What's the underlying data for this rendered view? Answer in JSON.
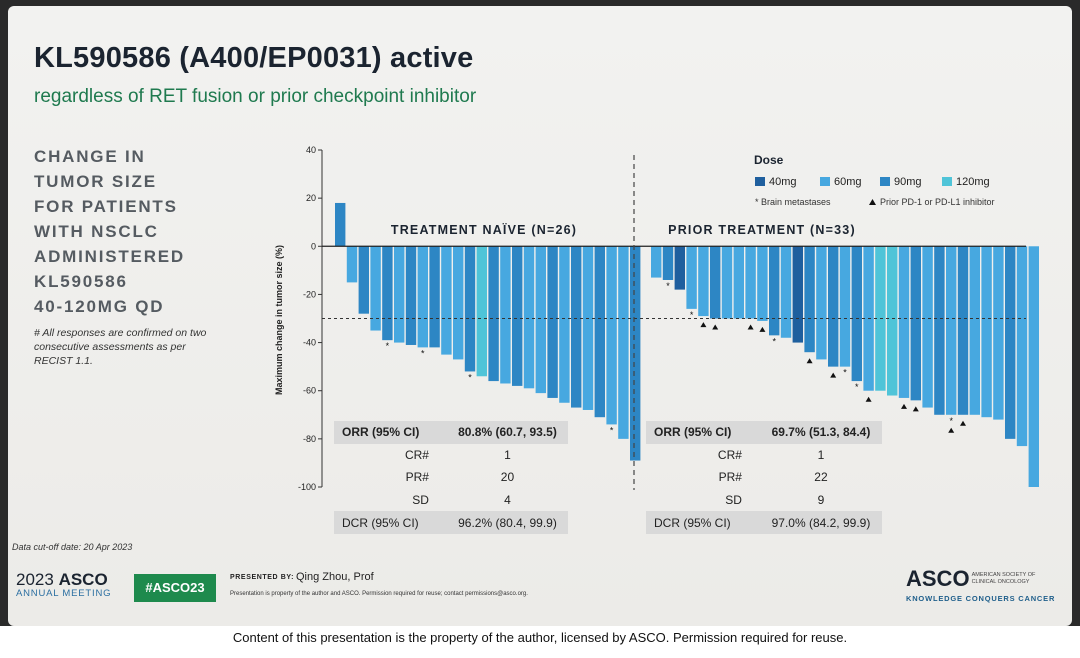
{
  "slide": {
    "title": "KL590586 (A400/EP0031) active",
    "subtitle": "regardless of RET fusion or prior checkpoint inhibitor",
    "side_heading_lines": [
      "CHANGE IN",
      "TUMOR SIZE",
      "FOR PATIENTS",
      "WITH NSCLC",
      "ADMINISTERED",
      "KL590586",
      "40-120MG QD"
    ],
    "side_note": "# All responses are confirmed on two consecutive assessments as per RECIST 1.1.",
    "cutoff": "Data cut-off date: 20 Apr 2023"
  },
  "colors": {
    "dose_40mg": "#1f5f9e",
    "dose_60mg": "#47a8e0",
    "dose_90mg": "#2d86c4",
    "dose_120mg": "#4fc4d8"
  },
  "chart_data": {
    "type": "bar",
    "ylabel": "Maximum change in tumor size (%)",
    "ylim": [
      -100,
      40
    ],
    "yticks": [
      "40",
      "20",
      "0",
      "-20",
      "-40",
      "-60",
      "-80",
      "-100"
    ],
    "threshold": -30,
    "legend": {
      "title": "Dose",
      "items": [
        {
          "label": "40mg",
          "color": "#1f5f9e"
        },
        {
          "label": "60mg",
          "color": "#47a8e0"
        },
        {
          "label": "90mg",
          "color": "#2d86c4"
        },
        {
          "label": "120mg",
          "color": "#4fc4d8"
        }
      ],
      "brain_metastases": "* Brain metastases",
      "prior_pd": "Prior PD-1 or PD-L1 inhibitor"
    },
    "groups": [
      {
        "name": "TREATMENT NAÏVE (N=26)",
        "values": [
          18,
          -15,
          -28,
          -35,
          -39,
          -40,
          -41,
          -42,
          -42,
          -45,
          -47,
          -52,
          -54,
          -56,
          -57,
          -58,
          -59,
          -61,
          -63,
          -65,
          -67,
          -68,
          -71,
          -74,
          -80,
          -89
        ],
        "doses": [
          "90mg",
          "60mg",
          "90mg",
          "60mg",
          "90mg",
          "60mg",
          "90mg",
          "60mg",
          "90mg",
          "60mg",
          "60mg",
          "90mg",
          "120mg",
          "90mg",
          "60mg",
          "90mg",
          "60mg",
          "60mg",
          "90mg",
          "60mg",
          "90mg",
          "60mg",
          "90mg",
          "60mg",
          "60mg",
          "90mg"
        ],
        "brain": [
          false,
          false,
          false,
          false,
          true,
          false,
          false,
          true,
          false,
          false,
          false,
          true,
          false,
          false,
          false,
          false,
          false,
          false,
          false,
          false,
          false,
          false,
          false,
          true,
          false,
          false
        ],
        "table": {
          "orr_label": "ORR (95% CI)",
          "orr": "80.8% (60.7, 93.5)",
          "cr_label": "CR#",
          "cr": "1",
          "pr_label": "PR#",
          "pr": "20",
          "sd_label": "SD",
          "sd": "4",
          "dcr_label": "DCR (95% CI)",
          "dcr": "96.2% (80.4, 99.9)"
        }
      },
      {
        "name": "PRIOR TREATMENT (N=33)",
        "values": [
          -13,
          -14,
          -18,
          -26,
          -29,
          -30,
          -30,
          -30,
          -30,
          -31,
          -37,
          -38,
          -40,
          -44,
          -47,
          -50,
          -50,
          -56,
          -60,
          -60,
          -62,
          -63,
          -64,
          -67,
          -70,
          -70,
          -70,
          -70,
          -71,
          -72,
          -80,
          -83,
          -100
        ],
        "doses": [
          "60mg",
          "90mg",
          "40mg",
          "60mg",
          "60mg",
          "90mg",
          "60mg",
          "60mg",
          "60mg",
          "60mg",
          "90mg",
          "60mg",
          "40mg",
          "90mg",
          "60mg",
          "90mg",
          "60mg",
          "90mg",
          "60mg",
          "120mg",
          "120mg",
          "60mg",
          "90mg",
          "60mg",
          "90mg",
          "60mg",
          "90mg",
          "60mg",
          "60mg",
          "60mg",
          "90mg",
          "60mg",
          "60mg"
        ],
        "brain": [
          false,
          true,
          false,
          true,
          false,
          false,
          false,
          false,
          false,
          false,
          true,
          false,
          false,
          false,
          false,
          false,
          true,
          true,
          false,
          false,
          false,
          false,
          false,
          false,
          false,
          true,
          false,
          false,
          false,
          false,
          false,
          false,
          false
        ],
        "prior_pd": [
          false,
          false,
          false,
          false,
          true,
          true,
          false,
          false,
          true,
          true,
          false,
          false,
          false,
          true,
          false,
          true,
          false,
          false,
          true,
          false,
          false,
          true,
          true,
          false,
          false,
          true,
          true,
          false,
          false,
          false,
          false,
          false,
          false
        ],
        "table": {
          "orr_label": "ORR (95% CI)",
          "orr": "69.7% (51.3, 84.4)",
          "cr_label": "CR#",
          "cr": "1",
          "pr_label": "PR#",
          "pr": "22",
          "sd_label": "SD",
          "sd": "9",
          "dcr_label": "DCR (95% CI)",
          "dcr": "97.0% (84.2, 99.9)"
        }
      }
    ]
  },
  "footer": {
    "asco_year": "2023",
    "asco_name": "ASCO",
    "annual_meeting": "ANNUAL MEETING",
    "hashtag": "#ASCO23",
    "presented_by": "PRESENTED BY:",
    "presenter": "Qing Zhou, Prof",
    "property_small": "Presentation is property of the author and ASCO. Permission required for reuse; contact permissions@asco.org.",
    "asco_right": "ASCO",
    "society": "AMERICAN SOCIETY OF CLINICAL ONCOLOGY",
    "tagline": "KNOWLEDGE CONQUERS CANCER",
    "bottom_note": "Content of this presentation is the property of the author, licensed by ASCO. Permission required for reuse."
  }
}
